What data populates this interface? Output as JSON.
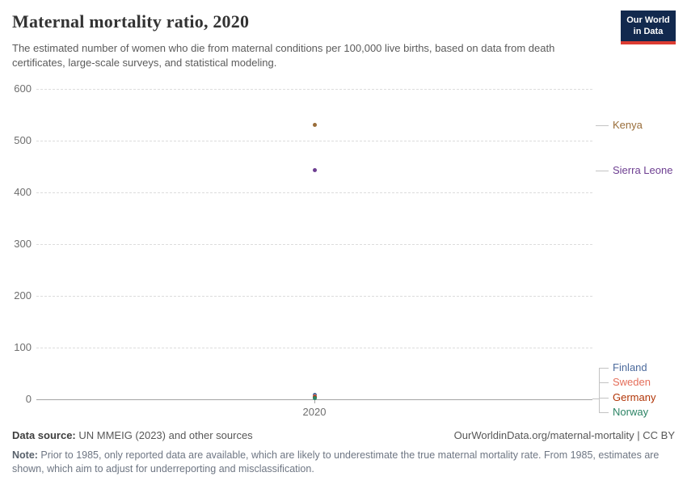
{
  "header": {
    "title": "Maternal mortality ratio, 2020",
    "subtitle": "The estimated number of women who die from maternal conditions per 100,000 live births, based on data from death certificates, large-scale surveys, and statistical modeling.",
    "logo": {
      "line1": "Our World",
      "line2": "in Data"
    }
  },
  "chart_data": {
    "type": "scatter",
    "title": "Maternal mortality ratio, 2020",
    "ylabel": "",
    "xlabel": "",
    "x": [
      2020
    ],
    "xticks": [
      "2020"
    ],
    "yticks": [
      0,
      100,
      200,
      300,
      400,
      500,
      600
    ],
    "ylim": [
      0,
      600
    ],
    "grid": "horizontal-dashed",
    "legend_position": "right-edge-labels",
    "series": [
      {
        "name": "Kenya",
        "values": [
          530
        ],
        "color": "#996D39",
        "label_y": 155,
        "bracket": false
      },
      {
        "name": "Sierra Leone",
        "values": [
          443
        ],
        "color": "#6D3E91",
        "label_y": 211,
        "bracket": false
      },
      {
        "name": "Finland",
        "values": [
          8
        ],
        "color": "#4C6A9C",
        "label_y": 455,
        "bracket": true
      },
      {
        "name": "Sweden",
        "values": [
          5
        ],
        "color": "#E56E5A",
        "label_y": 473,
        "bracket": true
      },
      {
        "name": "Germany",
        "values": [
          4
        ],
        "color": "#B13507",
        "label_y": 492,
        "bracket": true
      },
      {
        "name": "Norway",
        "values": [
          2
        ],
        "color": "#2C8465",
        "label_y": 510,
        "bracket": true
      }
    ]
  },
  "footer": {
    "datasource_label": "Data source:",
    "datasource_text": " UN MMEIG (2023) and other sources",
    "attribution": "OurWorldinData.org/maternal-mortality | CC BY",
    "note_label": "Note:",
    "note_text": " Prior to 1985, only reported data are available, which are likely to underestimate the true maternal mortality rate. From 1985, estimates are shown, which aim to adjust for underreporting and misclassification."
  }
}
